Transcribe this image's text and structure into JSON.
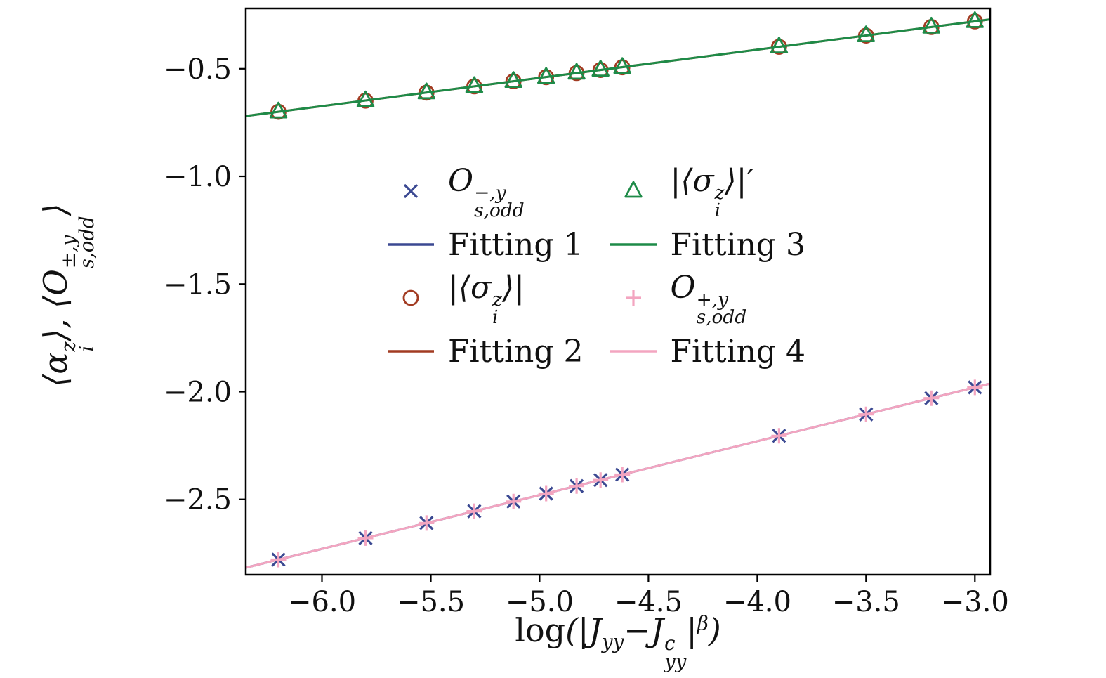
{
  "chart_data": {
    "type": "scatter",
    "title": "",
    "xlabel": "log(|J_{yy}−J_{yy}^{c}|^{β})",
    "ylabel": "⟨α_{i}^{z}⟩, ⟨O_{s,odd}^{±,y}⟩",
    "xlim": [
      -6.35,
      -2.93
    ],
    "ylim": [
      -2.85,
      -0.22
    ],
    "xticks": [
      -6.0,
      -5.5,
      -5.0,
      -4.5,
      -4.0,
      -3.5,
      -3.0
    ],
    "yticks": [
      -0.5,
      -1.0,
      -1.5,
      -2.0,
      -2.5
    ],
    "grid": false,
    "legend_position": "center",
    "x": [
      -6.2,
      -5.8,
      -5.52,
      -5.3,
      -5.12,
      -4.97,
      -4.83,
      -4.72,
      -4.62,
      -3.9,
      -3.5,
      -3.2,
      -3.0
    ],
    "series": [
      {
        "name": "O_{s,odd}^{−,y}",
        "type": "scatter",
        "marker": "x",
        "color": "#3b4992",
        "values": [
          -2.78,
          -2.68,
          -2.61,
          -2.555,
          -2.51,
          -2.473,
          -2.438,
          -2.41,
          -2.385,
          -2.205,
          -2.105,
          -2.03,
          -1.98
        ]
      },
      {
        "name": "Fitting 1",
        "type": "line",
        "color": "#3b4992",
        "slope": 0.25,
        "intercept": -1.23
      },
      {
        "name": "|⟨σ_{i}^{z}⟩|",
        "type": "scatter",
        "marker": "circle",
        "color": "#a23b22",
        "values": [
          -0.7,
          -0.648,
          -0.611,
          -0.582,
          -0.558,
          -0.539,
          -0.52,
          -0.506,
          -0.493,
          -0.398,
          -0.346,
          -0.306,
          -0.28
        ]
      },
      {
        "name": "Fitting 2",
        "type": "line",
        "color": "#a23b22",
        "slope": 0.13125,
        "intercept": 0.11375
      },
      {
        "name": "|⟨σ_{i}^{z}⟩|′",
        "type": "scatter",
        "marker": "triangle",
        "color": "#1e8b48",
        "values": [
          -0.7,
          -0.648,
          -0.611,
          -0.582,
          -0.558,
          -0.539,
          -0.52,
          -0.506,
          -0.493,
          -0.398,
          -0.346,
          -0.306,
          -0.28
        ]
      },
      {
        "name": "Fitting 3",
        "type": "line",
        "color": "#1e8b48",
        "slope": 0.13125,
        "intercept": 0.11375
      },
      {
        "name": "O_{s,odd}^{+,y}",
        "type": "scatter",
        "marker": "plus",
        "color": "#f3a5c0",
        "values": [
          -2.78,
          -2.68,
          -2.61,
          -2.555,
          -2.51,
          -2.473,
          -2.438,
          -2.41,
          -2.385,
          -2.205,
          -2.105,
          -2.03,
          -1.98
        ]
      },
      {
        "name": "Fitting 4",
        "type": "line",
        "color": "#f3a5c0",
        "slope": 0.25,
        "intercept": -1.23
      }
    ]
  },
  "legend": {
    "items": [
      {
        "swatch": "x",
        "color": "#3b4992",
        "label": "O_{s,odd}^{−,y}"
      },
      {
        "swatch": "line",
        "color": "#3b4992",
        "label": "Fitting 1"
      },
      {
        "swatch": "circle",
        "color": "#a23b22",
        "label": "|⟨σ_{i}^{z}⟩|"
      },
      {
        "swatch": "line",
        "color": "#a23b22",
        "label": "Fitting 2"
      },
      {
        "swatch": "triangle",
        "color": "#1e8b48",
        "label": "|⟨σ_{i}^{z}⟩|′"
      },
      {
        "swatch": "line",
        "color": "#1e8b48",
        "label": "Fitting 3"
      },
      {
        "swatch": "plus",
        "color": "#f3a5c0",
        "label": "O_{s,odd}^{+,y}"
      },
      {
        "swatch": "line",
        "color": "#f3a5c0",
        "label": "Fitting 4"
      }
    ]
  },
  "frame_color": "#000000"
}
